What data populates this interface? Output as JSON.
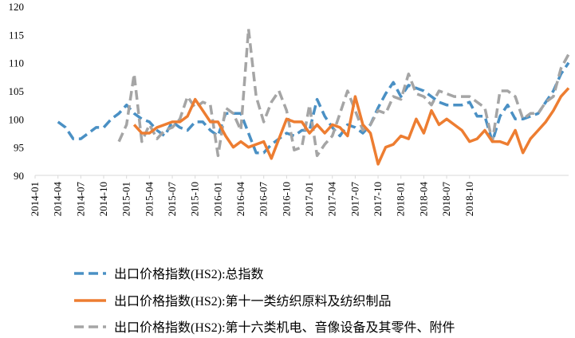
{
  "chart_data": {
    "type": "line",
    "title": "",
    "xlabel": "",
    "ylabel": "",
    "ylim": [
      90,
      120
    ],
    "yticks": [
      90,
      95,
      100,
      105,
      110,
      115,
      120
    ],
    "grid": false,
    "legend_position": "bottom",
    "xtick_labels": [
      "2014-01",
      "2014-04",
      "2014-07",
      "2014-10",
      "2015-01",
      "2015-04",
      "2015-07",
      "2015-10",
      "2016-01",
      "2016-04",
      "2016-07",
      "2016-10",
      "2017-01",
      "2017-04",
      "2017-07",
      "2017-10",
      "2018-01",
      "2018-04",
      "2018-07",
      "2018-10"
    ],
    "x_start": "2014-01",
    "series": [
      {
        "name": "出口价格指数(HS2):总指数",
        "color": "#4a90c4",
        "dash": "dashed",
        "values": [
          99.5,
          98.5,
          96.5,
          96.5,
          97.5,
          98.5,
          98.5,
          100,
          101,
          102.5,
          101,
          100,
          99.5,
          98,
          97,
          99.5,
          98.5,
          98,
          99.5,
          99.5,
          98,
          97,
          101,
          101,
          101,
          97.5,
          94,
          94,
          95.5,
          96.5,
          97.5,
          97,
          98,
          98,
          103.5,
          100.5,
          98.5,
          97,
          99,
          98.5,
          97.5,
          99,
          102,
          104.5,
          106.5,
          104,
          106,
          105.5,
          105,
          104,
          103,
          102.5,
          102.5,
          102.5,
          103,
          100.5,
          100.5,
          96,
          100.5,
          102.5,
          100,
          100,
          100.5,
          101,
          103,
          105,
          108,
          110
        ]
      },
      {
        "name": "出口价格指数(HS2):第十一类纺织原料及纺织制品",
        "color": "#ed7d31",
        "dash": "solid",
        "values": [
          99,
          97.5,
          97.5,
          98.5,
          99,
          99.5,
          99.5,
          100.5,
          103.5,
          101.5,
          99.5,
          99.5,
          97,
          95,
          96,
          95,
          95.5,
          96,
          93,
          96.5,
          100,
          99.5,
          99.5,
          97.5,
          99,
          97.5,
          99,
          98.5,
          97,
          104,
          99,
          97.5,
          92,
          95,
          95.5,
          97,
          96.5,
          100,
          97.5,
          101.5,
          99,
          100,
          99,
          98,
          96,
          96.5,
          98,
          96,
          96,
          95.5,
          98,
          94,
          96.5,
          98,
          99.5,
          101.5,
          104,
          105.5
        ]
      },
      {
        "name": "出口价格指数(HS2):第十六类机电、音像设备及其零件、附件",
        "color": "#a5a5a5",
        "dash": "dashed",
        "values": [
          96,
          99,
          108,
          96,
          99,
          96.5,
          98,
          98.5,
          100,
          104,
          102,
          103,
          102.5,
          93.5,
          102,
          101,
          98,
          116,
          104,
          99.5,
          103,
          105,
          101.5,
          94.5,
          95,
          102.5,
          93.5,
          95.5,
          97,
          101,
          105,
          101.5,
          98,
          99,
          101.5,
          101,
          104,
          103.5,
          108,
          104.5,
          104,
          102.5,
          105,
          104.5,
          104,
          104,
          104,
          103,
          102,
          96,
          105,
          105,
          104,
          100,
          101,
          101,
          103,
          104,
          109,
          111.5
        ]
      }
    ]
  }
}
